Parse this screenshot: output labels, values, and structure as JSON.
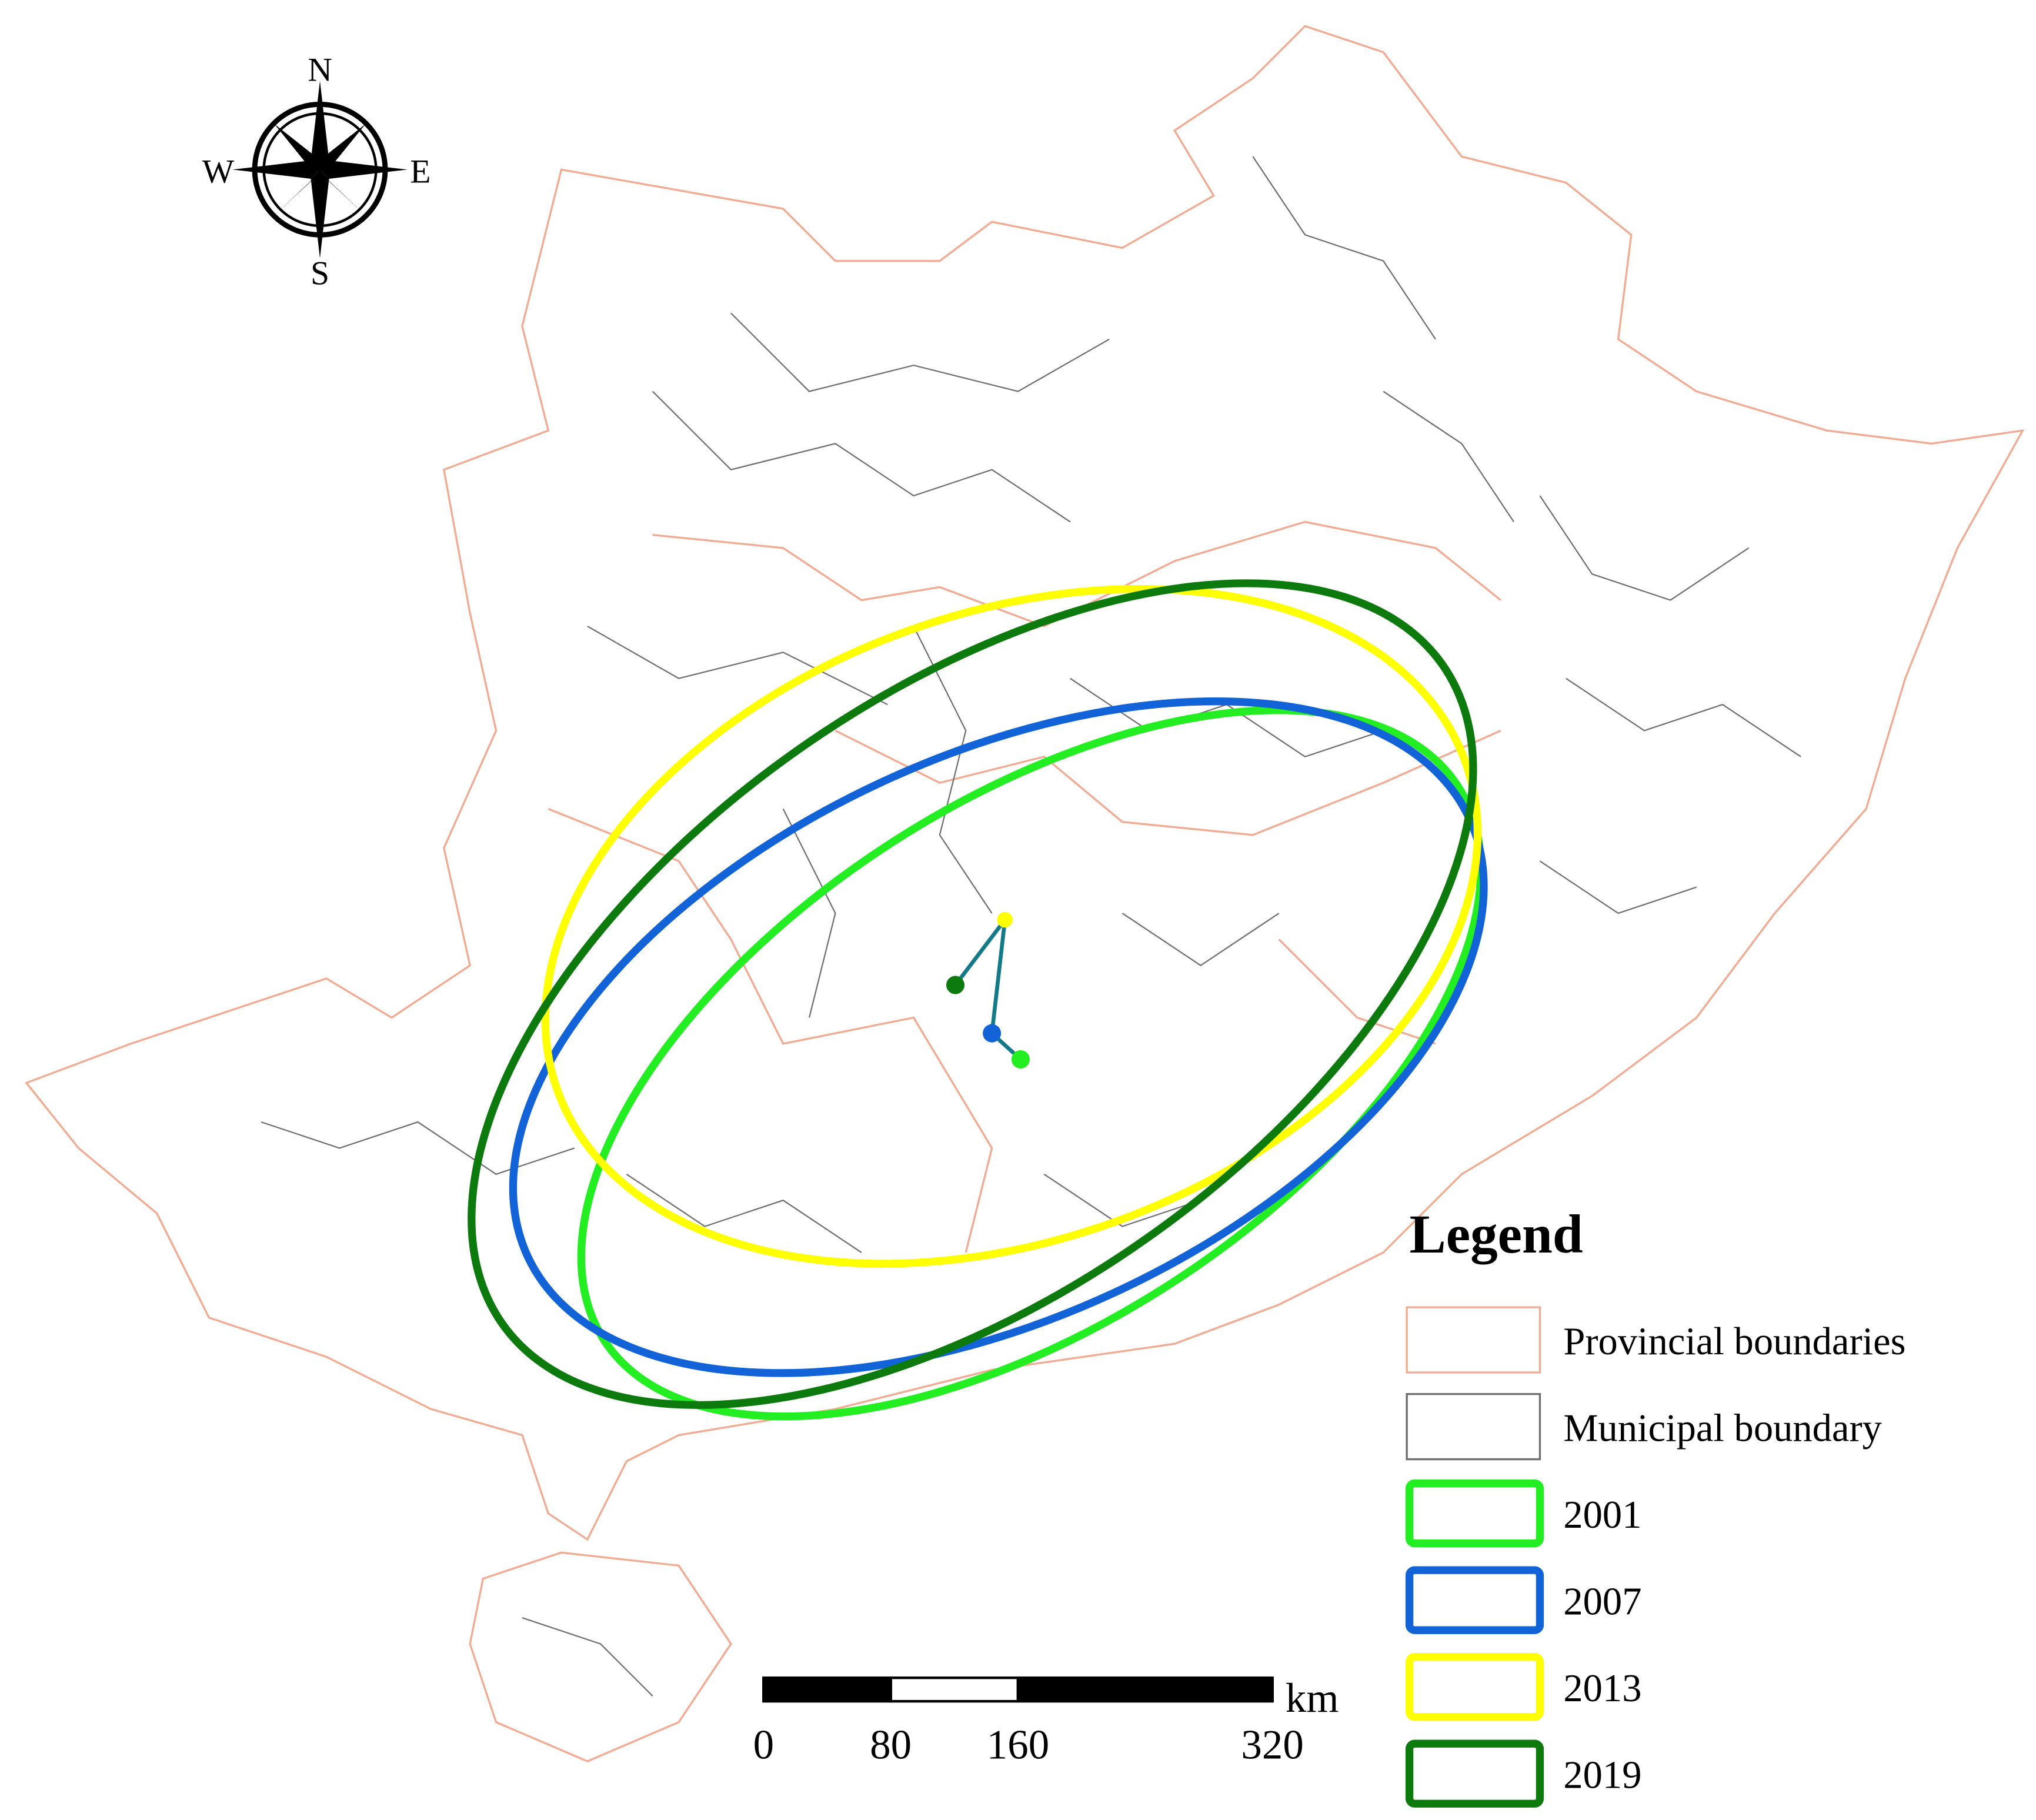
{
  "compass": {
    "north": "N",
    "south": "S",
    "east": "E",
    "west": "W"
  },
  "legend": {
    "title": "Legend",
    "items": [
      {
        "label": "Provincial boundaries",
        "color": "#f2ab92",
        "kind": "boundary"
      },
      {
        "label": "Municipal boundary",
        "color": "#6e6e6e",
        "kind": "boundary"
      },
      {
        "label": "2001",
        "color": "#22ee22",
        "kind": "ellipse"
      },
      {
        "label": "2007",
        "color": "#1262d8",
        "kind": "ellipse"
      },
      {
        "label": "2013",
        "color": "#ffff00",
        "kind": "ellipse"
      },
      {
        "label": "2019",
        "color": "#0c7a0c",
        "kind": "ellipse"
      }
    ]
  },
  "scale_bar": {
    "unit": "km",
    "ticks": [
      0,
      80,
      160,
      320
    ]
  }
}
